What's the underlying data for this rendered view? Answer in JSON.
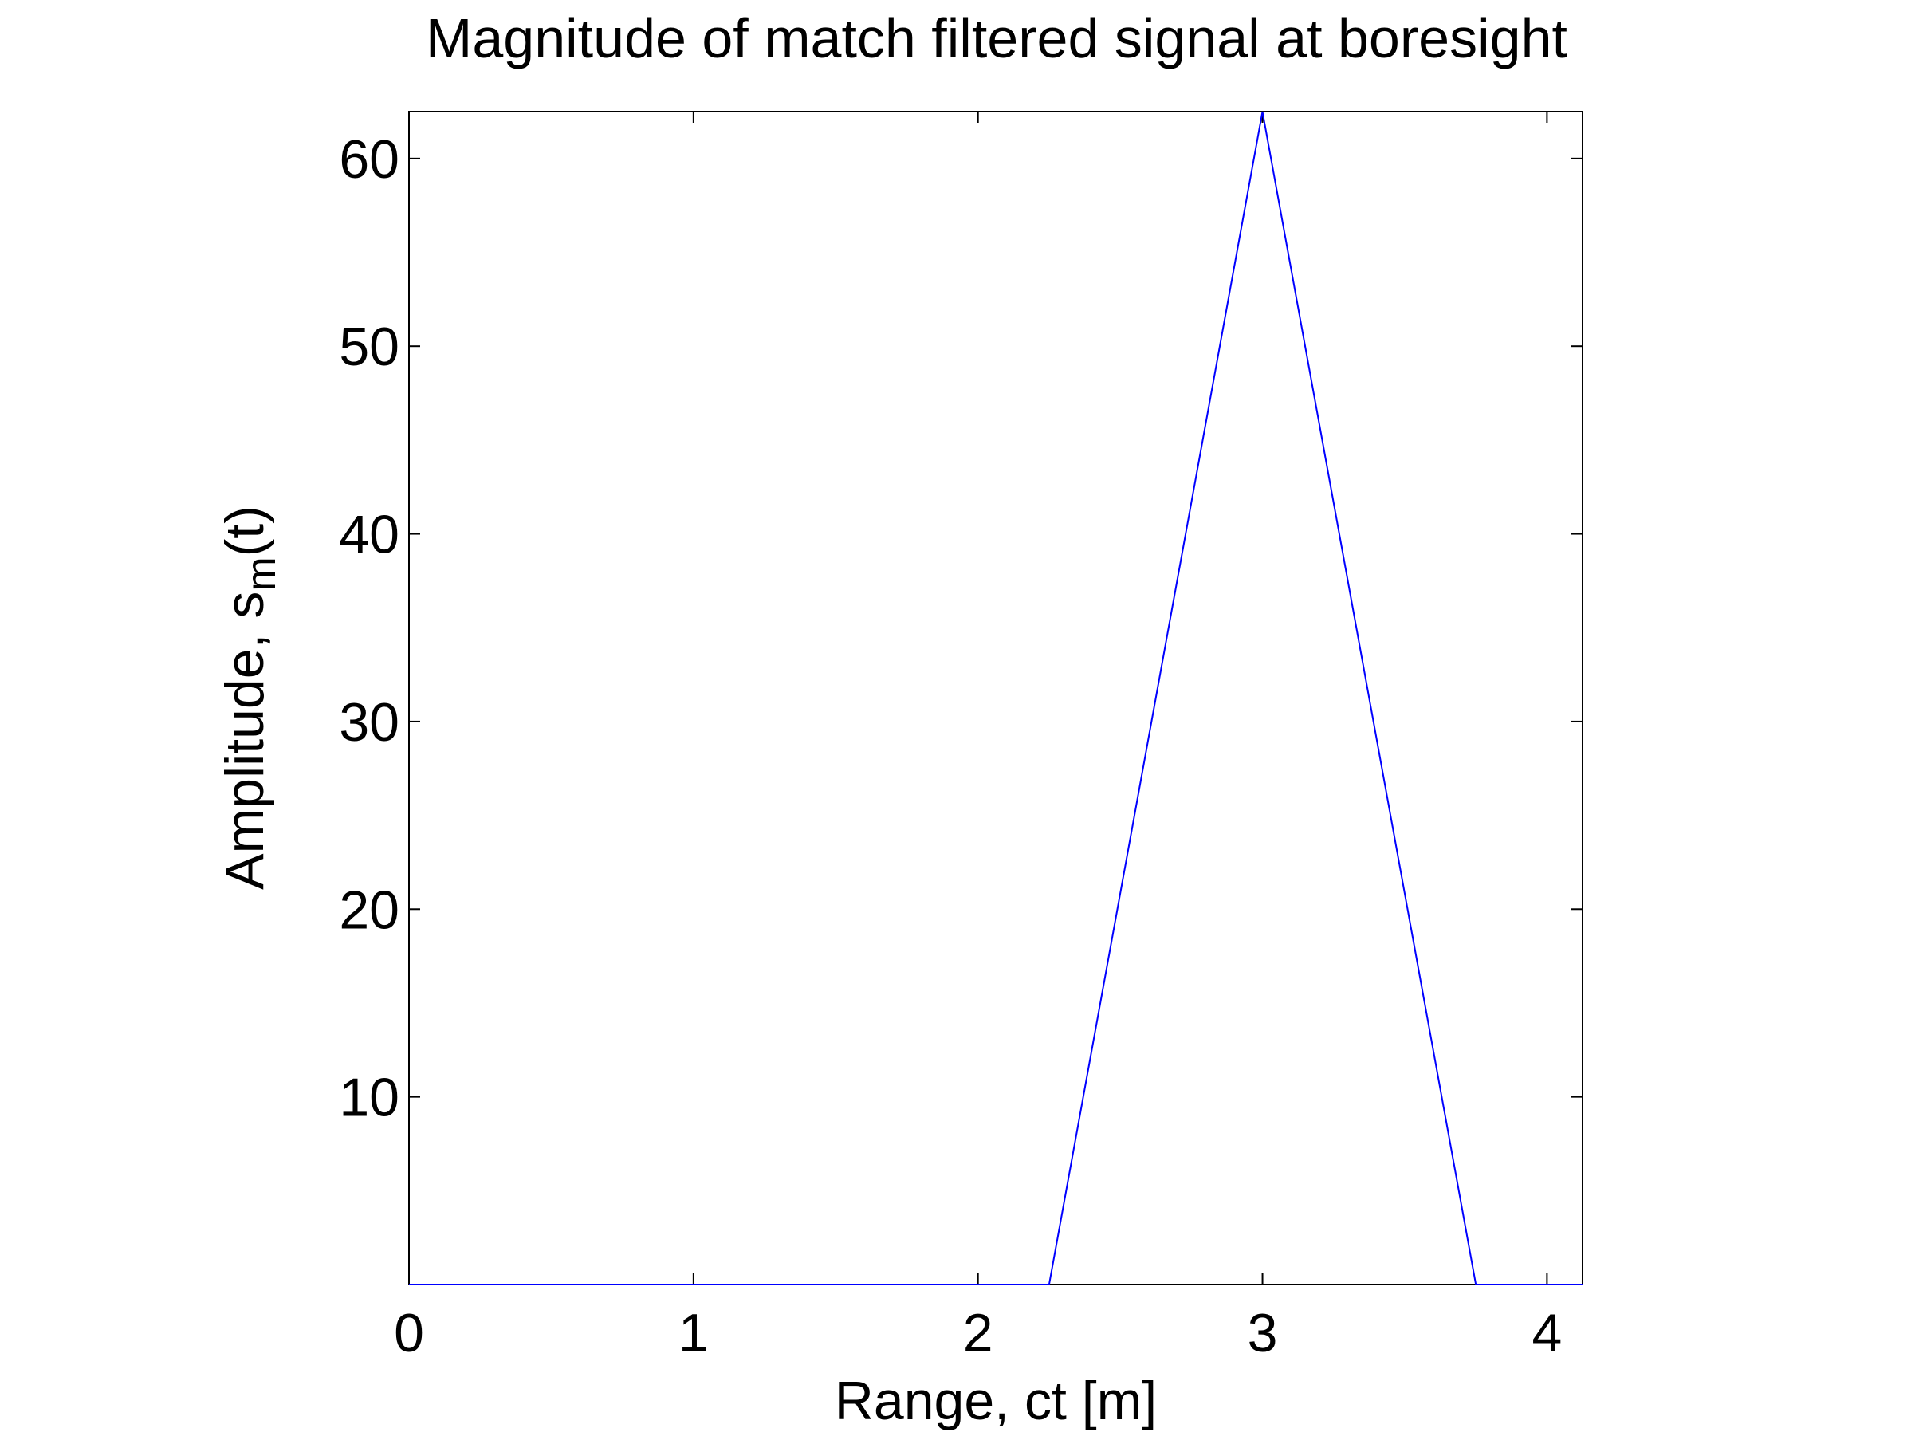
{
  "chart_data": {
    "type": "line",
    "title": "Magnitude of match filtered signal at boresight",
    "xlabel": "Range, ct [m]",
    "ylabel_main": "Amplitude, s",
    "ylabel_sub": "m",
    "ylabel_tail": "(t)",
    "xlim": [
      0,
      4.125
    ],
    "ylim": [
      0,
      62.5
    ],
    "xticks": [
      0,
      1,
      2,
      3,
      4
    ],
    "yticks": [
      10,
      20,
      30,
      40,
      50,
      60
    ],
    "grid": false,
    "series": [
      {
        "color": "#0000ff",
        "x": [
          0,
          2.25,
          3.0,
          3.75,
          4.125
        ],
        "y": [
          0,
          0,
          62.5,
          0,
          0
        ]
      }
    ]
  }
}
